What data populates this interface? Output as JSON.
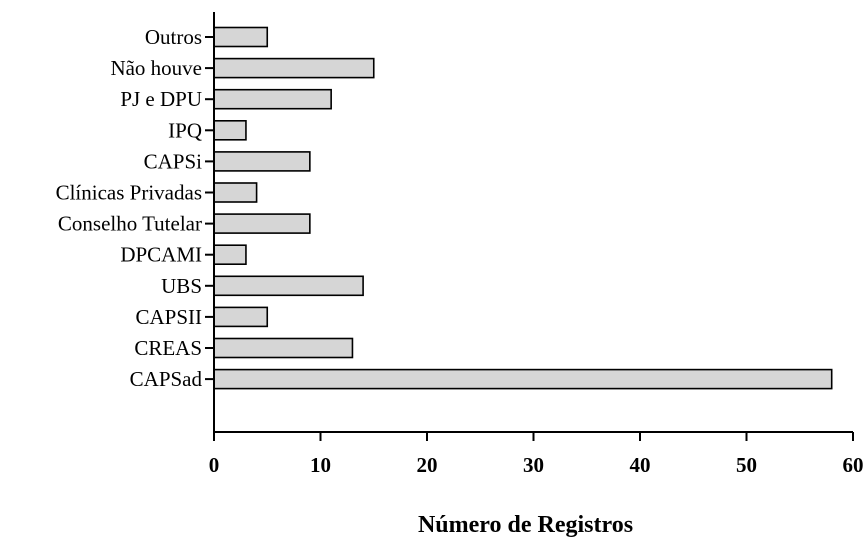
{
  "chart_data": {
    "type": "bar",
    "orientation": "horizontal",
    "categories": [
      "Outros",
      "Não houve",
      "PJ e DPU",
      "IPQ",
      "CAPSi",
      "Clínicas Privadas",
      "Conselho Tutelar",
      "DPCAMI",
      "UBS",
      "CAPSII",
      "CREAS",
      "CAPSad"
    ],
    "values": [
      5,
      15,
      11,
      3,
      9,
      4,
      9,
      3,
      14,
      5,
      13,
      58
    ],
    "title": "",
    "xlabel": "Número de Registros",
    "ylabel": "",
    "xlim": [
      0,
      60
    ],
    "xticks": [
      0,
      10,
      20,
      30,
      40,
      50,
      60
    ],
    "grid": false,
    "bar_color": "#d6d6d6",
    "edge_color": "#000000"
  }
}
